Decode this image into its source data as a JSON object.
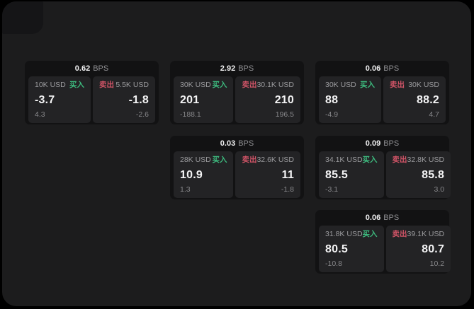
{
  "labels": {
    "bps": "BPS",
    "buy": "买入",
    "sell": "卖出"
  },
  "colors": {
    "buy_green": "#3dba7e",
    "sell_red": "#d05467",
    "window_bg": "#1c1c1d",
    "card_bg": "#121213",
    "panel_bg": "#232325"
  },
  "cards": [
    {
      "bps": "0.62",
      "buy": {
        "size": "10K USD",
        "price": "-3.7",
        "delta": "4.3"
      },
      "sell": {
        "size": "5.5K USD",
        "price": "-1.8",
        "delta": "-2.6"
      }
    },
    {
      "bps": "2.92",
      "buy": {
        "size": "30K USD",
        "price": "201",
        "delta": "-188.1"
      },
      "sell": {
        "size": "30.1K USD",
        "price": "210",
        "delta": "196.5"
      }
    },
    {
      "bps": "0.06",
      "buy": {
        "size": "30K USD",
        "price": "88",
        "delta": "-4.9"
      },
      "sell": {
        "size": "30K USD",
        "price": "88.2",
        "delta": "4.7"
      }
    },
    {
      "bps": "0.03",
      "buy": {
        "size": "28K USD",
        "price": "10.9",
        "delta": "1.3"
      },
      "sell": {
        "size": "32.6K USD",
        "price": "11",
        "delta": "-1.8"
      }
    },
    {
      "bps": "0.09",
      "buy": {
        "size": "34.1K USD",
        "price": "85.5",
        "delta": "-3.1"
      },
      "sell": {
        "size": "32.8K USD",
        "price": "85.8",
        "delta": "3.0"
      }
    },
    {
      "bps": "0.06",
      "buy": {
        "size": "31.8K USD",
        "price": "80.5",
        "delta": "-10.8"
      },
      "sell": {
        "size": "39.1K USD",
        "price": "80.7",
        "delta": "10.2"
      }
    }
  ]
}
